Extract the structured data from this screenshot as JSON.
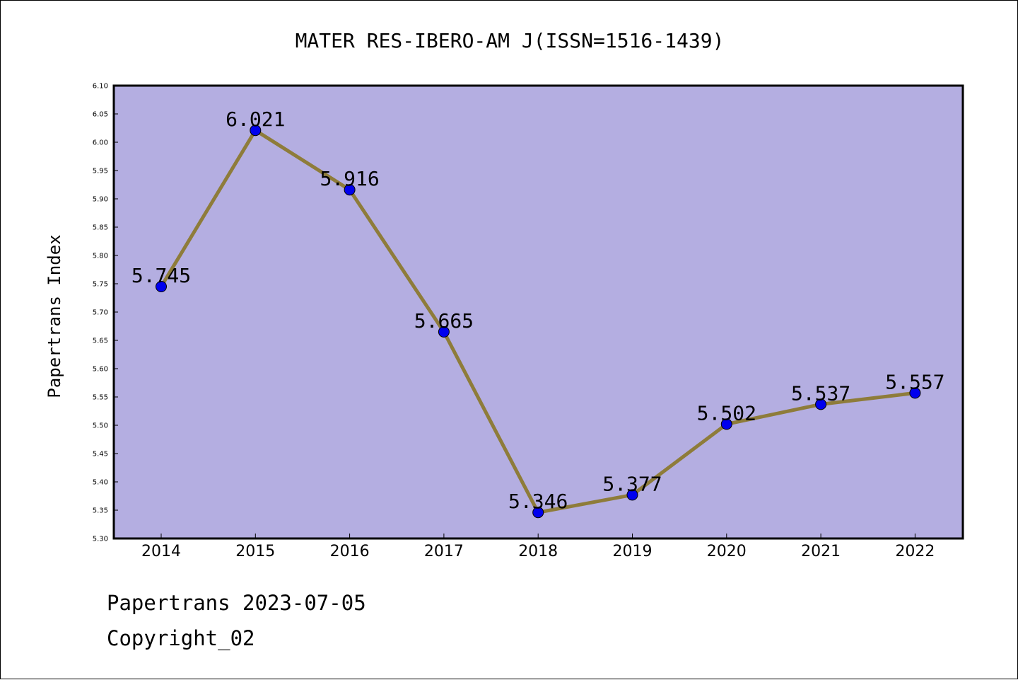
{
  "chart_data": {
    "type": "line",
    "title": "MATER RES-IBERO-AM J(ISSN=1516-1439)",
    "ylabel": "Papertrans Index",
    "xlabel": "",
    "categories": [
      "2014",
      "2015",
      "2016",
      "2017",
      "2018",
      "2019",
      "2020",
      "2021",
      "2022"
    ],
    "series": [
      {
        "values": [
          5.745,
          6.021,
          5.916,
          5.665,
          5.346,
          5.377,
          5.502,
          5.537,
          5.557
        ],
        "data_labels": [
          "5.745",
          "6.021",
          "5.916",
          "5.665",
          "5.346",
          "5.377",
          "5.502",
          "5.537",
          "5.557"
        ]
      }
    ],
    "ylim": [
      5.3,
      6.1
    ],
    "yticks": [
      "5.30",
      "5.35",
      "5.40",
      "5.45",
      "5.50",
      "5.55",
      "5.60",
      "5.65",
      "5.70",
      "5.75",
      "5.80",
      "5.85",
      "5.90",
      "5.95",
      "6.00",
      "6.05",
      "6.10"
    ],
    "grid": false,
    "legend": "none",
    "colors": {
      "plot_background": "#b4aee1",
      "line": "#8e7c3a",
      "marker": "#0000ee"
    }
  },
  "footer": {
    "date_text": "Papertrans 2023-07-05",
    "copyright_text": "Copyright_02"
  }
}
